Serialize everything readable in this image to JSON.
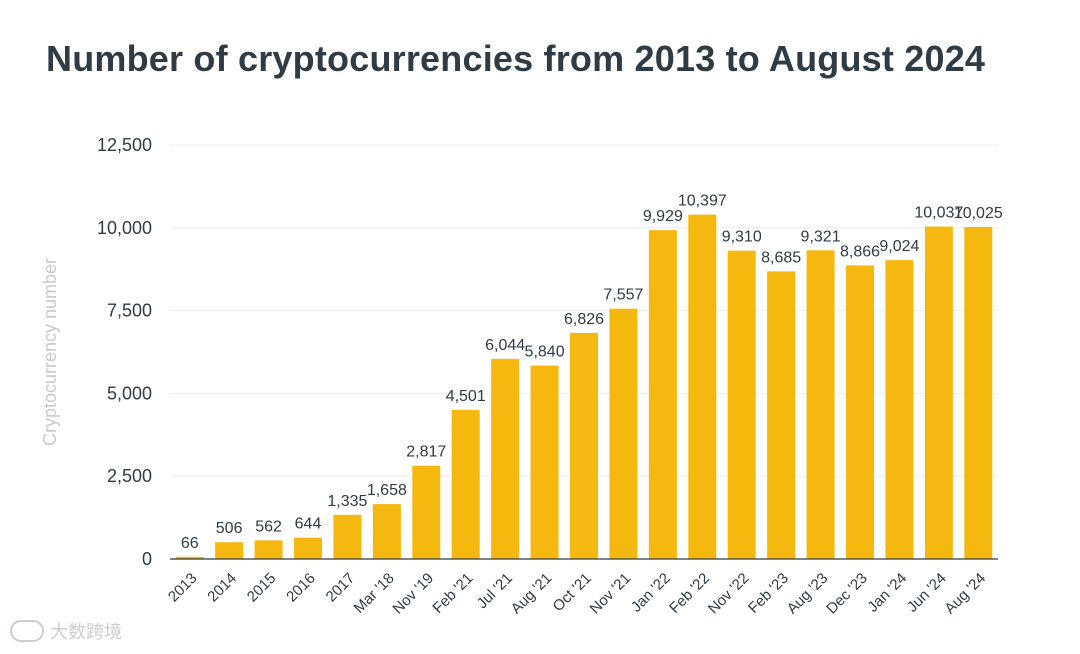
{
  "chart_data": {
    "type": "bar",
    "title": "Number of cryptocurrencies from 2013 to August 2024",
    "ylabel": "Cryptocurrency number",
    "xlabel": "",
    "ylim": [
      0,
      12500
    ],
    "yticks": [
      0,
      2500,
      5000,
      7500,
      10000,
      12500
    ],
    "ytick_labels": [
      "0",
      "2,500",
      "5,000",
      "7,500",
      "10,000",
      "12,500"
    ],
    "categories": [
      "2013",
      "2014",
      "2015",
      "2016",
      "2017",
      "Mar '18",
      "Nov '19",
      "Feb '21",
      "Jul '21",
      "Aug '21",
      "Oct '21",
      "Nov '21",
      "Jan '22",
      "Feb '22",
      "Nov '22",
      "Feb '23",
      "Aug '23",
      "Dec '23",
      "Jan '24",
      "Jun '24",
      "Aug '24"
    ],
    "values": [
      66,
      506,
      562,
      644,
      1335,
      1658,
      2817,
      4501,
      6044,
      5840,
      6826,
      7557,
      9929,
      10397,
      9310,
      8685,
      9321,
      8866,
      9024,
      10037,
      10025
    ],
    "value_labels": [
      "66",
      "506",
      "562",
      "644",
      "1,335",
      "1,658",
      "2,817",
      "4,501",
      "6,044",
      "5,840",
      "6,826",
      "7,557",
      "9,929",
      "10,397",
      "9,310",
      "8,685",
      "9,321",
      "8,866",
      "9,024",
      "10,037",
      "10,025"
    ],
    "grid": true,
    "colors": {
      "bar": "#f4b80e",
      "text": "#2f3b45",
      "axis_label": "#c3cbd2",
      "grid": "#ececec",
      "watermark": "#c9ced3"
    }
  },
  "watermark": {
    "text": "大数跨境"
  }
}
